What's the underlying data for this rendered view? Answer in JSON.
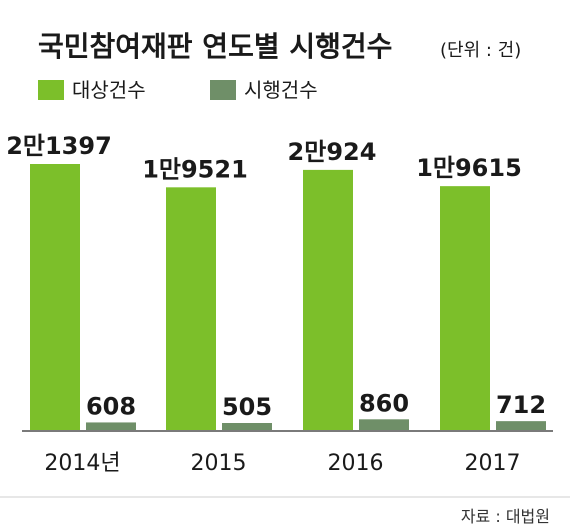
{
  "title": "국민참여재판 연도별 시행건수",
  "unit_note": "(단위 : 건)",
  "source": "자료 : 대법원",
  "colors": {
    "target": "#7cbf2a",
    "executed": "#6f8f68",
    "axis": "#7a7a7a",
    "text": "#1a1a1a",
    "source_text": "#333333"
  },
  "chart_data": {
    "type": "bar",
    "title": "국민참여재판 연도별 시행건수",
    "categories": [
      "2014년",
      "2015",
      "2016",
      "2017"
    ],
    "series": [
      {
        "name": "대상건수",
        "values": [
          21397,
          19521,
          20924,
          19615
        ],
        "labels": [
          "2만1397",
          "1만9521",
          "2만924",
          "1만9615"
        ]
      },
      {
        "name": "시행건수",
        "values": [
          608,
          505,
          860,
          712
        ],
        "labels": [
          "608",
          "505",
          "860",
          "712"
        ]
      }
    ],
    "legend_position": "top-left",
    "grid": false
  }
}
